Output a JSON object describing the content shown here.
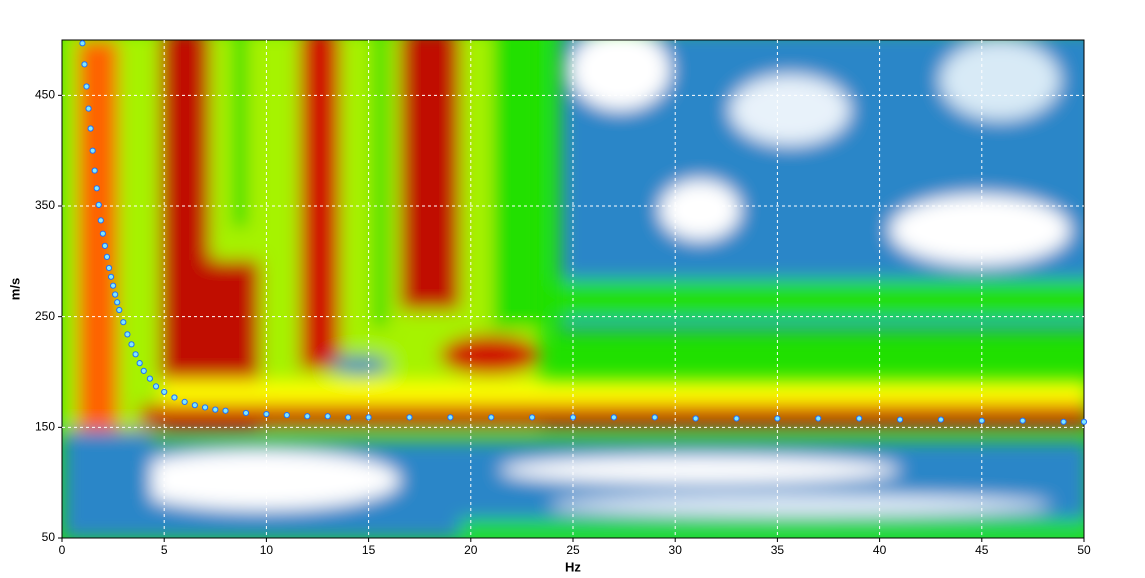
{
  "chart_data": {
    "type": "scatter",
    "xlabel": "Hz",
    "ylabel": "m/s",
    "xlim": [
      0,
      50
    ],
    "ylim": [
      50,
      500
    ],
    "xticks": [
      0,
      5,
      10,
      15,
      20,
      25,
      30,
      35,
      40,
      45,
      50
    ],
    "yticks": [
      50,
      150,
      250,
      350,
      450
    ],
    "grid": true,
    "series": [
      {
        "color": "#1e6fff",
        "x": [
          1.0,
          1.1,
          1.2,
          1.3,
          1.4,
          1.5,
          1.6,
          1.7,
          1.8,
          1.9,
          2.0,
          2.1,
          2.2,
          2.3,
          2.4,
          2.5,
          2.6,
          2.7,
          2.8,
          3.0,
          3.2,
          3.4,
          3.6,
          3.8,
          4.0,
          4.3,
          4.6,
          5.0,
          5.5,
          6.0,
          6.5,
          7.0,
          7.5,
          8.0,
          9.0,
          10,
          11,
          12,
          13,
          14,
          15,
          17,
          19,
          21,
          23,
          25,
          27,
          29,
          31,
          33,
          35,
          37,
          39,
          41,
          43,
          45,
          47,
          49,
          50
        ],
        "values": [
          497,
          478,
          458,
          438,
          420,
          400,
          382,
          366,
          351,
          337,
          325,
          314,
          304,
          294,
          286,
          278,
          270,
          263,
          256,
          245,
          234,
          225,
          216,
          208,
          201,
          194,
          187,
          182,
          177,
          173,
          170,
          168,
          166,
          165,
          163,
          162,
          161,
          160,
          160,
          159,
          159,
          159,
          159,
          159,
          159,
          159,
          159,
          159,
          158,
          158,
          158,
          158,
          158,
          157,
          157,
          156,
          156,
          155,
          155
        ]
      }
    ]
  }
}
